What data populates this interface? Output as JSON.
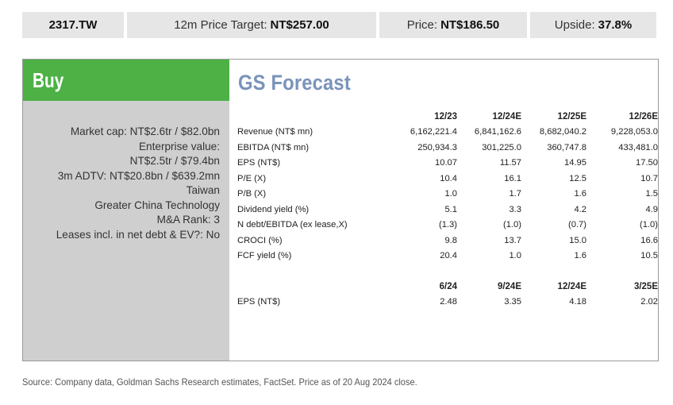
{
  "topbar": {
    "ticker": "2317.TW",
    "target_label": "12m Price Target:",
    "target_value": "NT$257.00",
    "price_label": "Price:",
    "price_value": "NT$186.50",
    "upside_label": "Upside:",
    "upside_value": "37.8%"
  },
  "rating": "Buy",
  "key_info": [
    "Market cap: NT$2.6tr / $82.0bn",
    "Enterprise value:",
    "NT$2.5tr / $79.4bn",
    "3m ADTV: NT$20.8bn / $639.2mn",
    "Taiwan",
    "Greater China Technology",
    "M&A Rank: 3",
    "Leases incl. in net debt & EV?: No"
  ],
  "forecast": {
    "title": "GS Forecast",
    "annual_headers": [
      "12/23",
      "12/24E",
      "12/25E",
      "12/26E"
    ],
    "rows": [
      {
        "label": "Revenue (NT$ mn)",
        "values": [
          "6,162,221.4",
          "6,841,162.6",
          "8,682,040.2",
          "9,228,053.0"
        ]
      },
      {
        "label": "EBITDA (NT$ mn)",
        "values": [
          "250,934.3",
          "301,225.0",
          "360,747.8",
          "433,481.0"
        ]
      },
      {
        "label": "EPS (NT$)",
        "values": [
          "10.07",
          "11.57",
          "14.95",
          "17.50"
        ]
      },
      {
        "label": "P/E (X)",
        "values": [
          "10.4",
          "16.1",
          "12.5",
          "10.7"
        ]
      },
      {
        "label": "P/B (X)",
        "values": [
          "1.0",
          "1.7",
          "1.6",
          "1.5"
        ]
      },
      {
        "label": "Dividend yield (%)",
        "values": [
          "5.1",
          "3.3",
          "4.2",
          "4.9"
        ]
      },
      {
        "label": "N debt/EBITDA (ex lease,X)",
        "values": [
          "(1.3)",
          "(1.0)",
          "(0.7)",
          "(1.0)"
        ]
      },
      {
        "label": "CROCI (%)",
        "values": [
          "9.8",
          "13.7",
          "15.0",
          "16.6"
        ]
      },
      {
        "label": "FCF yield (%)",
        "values": [
          "20.4",
          "1.0",
          "1.6",
          "10.5"
        ]
      }
    ],
    "quarterly_headers": [
      "6/24",
      "9/24E",
      "12/24E",
      "3/25E"
    ],
    "quarterly_rows": [
      {
        "label": "EPS (NT$)",
        "values": [
          "2.48",
          "3.35",
          "4.18",
          "2.02"
        ]
      }
    ]
  },
  "source": "Source: Company data, Goldman Sachs Research estimates, FactSet. Price as of 20 Aug 2024 close.",
  "colors": {
    "buy_green": "#4db146",
    "panel_gray": "#cfcfcf",
    "title_blue": "#7a93ba",
    "topbar_gray": "#e6e6e6"
  }
}
